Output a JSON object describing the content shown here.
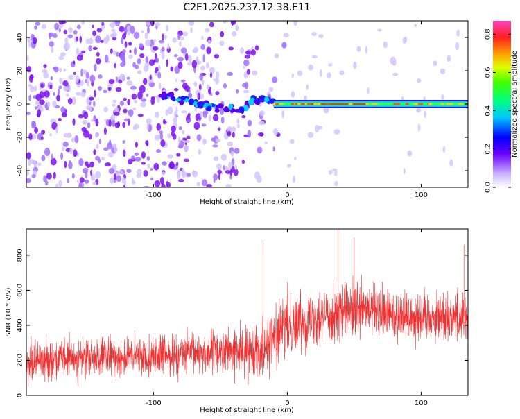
{
  "title": "C2E1.2025.237.12.38.E11",
  "colors": {
    "snr_line": "#ee3333",
    "spec_low": "#b7a0ff",
    "spec_mid": "#7d00ff",
    "spec_high": "#ff2020"
  },
  "chart_data": [
    {
      "type": "heatmap",
      "name": "spectrogram",
      "title": "C2E1.2025.237.12.38.E11",
      "xlabel": "Height of straight line (km)",
      "ylabel": "Frequency (Hz)",
      "xlim": [
        -195,
        135
      ],
      "ylim": [
        -50,
        50
      ],
      "xticks": [
        -100,
        0,
        100
      ],
      "xtick_labels": [
        "-100",
        "0",
        "100"
      ],
      "yticks": [
        -40,
        -20,
        0,
        20,
        40
      ],
      "ytick_labels": [
        "-40",
        "-20",
        "0",
        "20",
        "40"
      ],
      "features": [
        {
          "label": "diffuse noise speckle",
          "x_range": [
            -195,
            0
          ],
          "y_range": [
            -50,
            50
          ]
        },
        {
          "label": "oblique trace",
          "points": [
            [
              -95,
              6
            ],
            [
              -80,
              3
            ],
            [
              -65,
              0
            ],
            [
              -50,
              -2
            ],
            [
              -35,
              -4
            ],
            [
              -25,
              2
            ],
            [
              -10,
              2
            ]
          ]
        },
        {
          "label": "horizontal signal band",
          "x_range": [
            -10,
            135
          ],
          "frequency": 0,
          "peak_amplitude": 0.85
        }
      ],
      "colorbar": {
        "label": "Normalized spectral amplitude",
        "range": [
          0,
          0.87
        ],
        "ticks": [
          0.0,
          0.2,
          0.4,
          0.6,
          0.8
        ],
        "tick_labels": [
          "0.0",
          "0.2",
          "0.4",
          "0.6",
          "0.8"
        ]
      }
    },
    {
      "type": "line",
      "name": "snr",
      "xlabel": "Height of straight line (km)",
      "ylabel": "SNR (10 * v/v)",
      "xlim": [
        -195,
        135
      ],
      "ylim": [
        0,
        950
      ],
      "xticks": [
        -100,
        0,
        100
      ],
      "xtick_labels": [
        "-100",
        "0",
        "100"
      ],
      "yticks": [
        0,
        200,
        400,
        600,
        800
      ],
      "ytick_labels": [
        "0",
        "200",
        "400",
        "600",
        "800"
      ],
      "envelope": {
        "x": [
          -195,
          -150,
          -100,
          -50,
          -30,
          -20,
          -10,
          0,
          20,
          40,
          60,
          80,
          100,
          135
        ],
        "mean": [
          200,
          210,
          225,
          250,
          250,
          270,
          330,
          400,
          450,
          470,
          480,
          460,
          450,
          450
        ],
        "spread": [
          140,
          140,
          140,
          150,
          170,
          190,
          220,
          220,
          200,
          210,
          200,
          190,
          180,
          180
        ]
      },
      "peaks": [
        {
          "x": -18,
          "y": 890
        },
        {
          "x": 38,
          "y": 950
        },
        {
          "x": 50,
          "y": 900
        },
        {
          "x": 132,
          "y": 860
        }
      ]
    }
  ]
}
